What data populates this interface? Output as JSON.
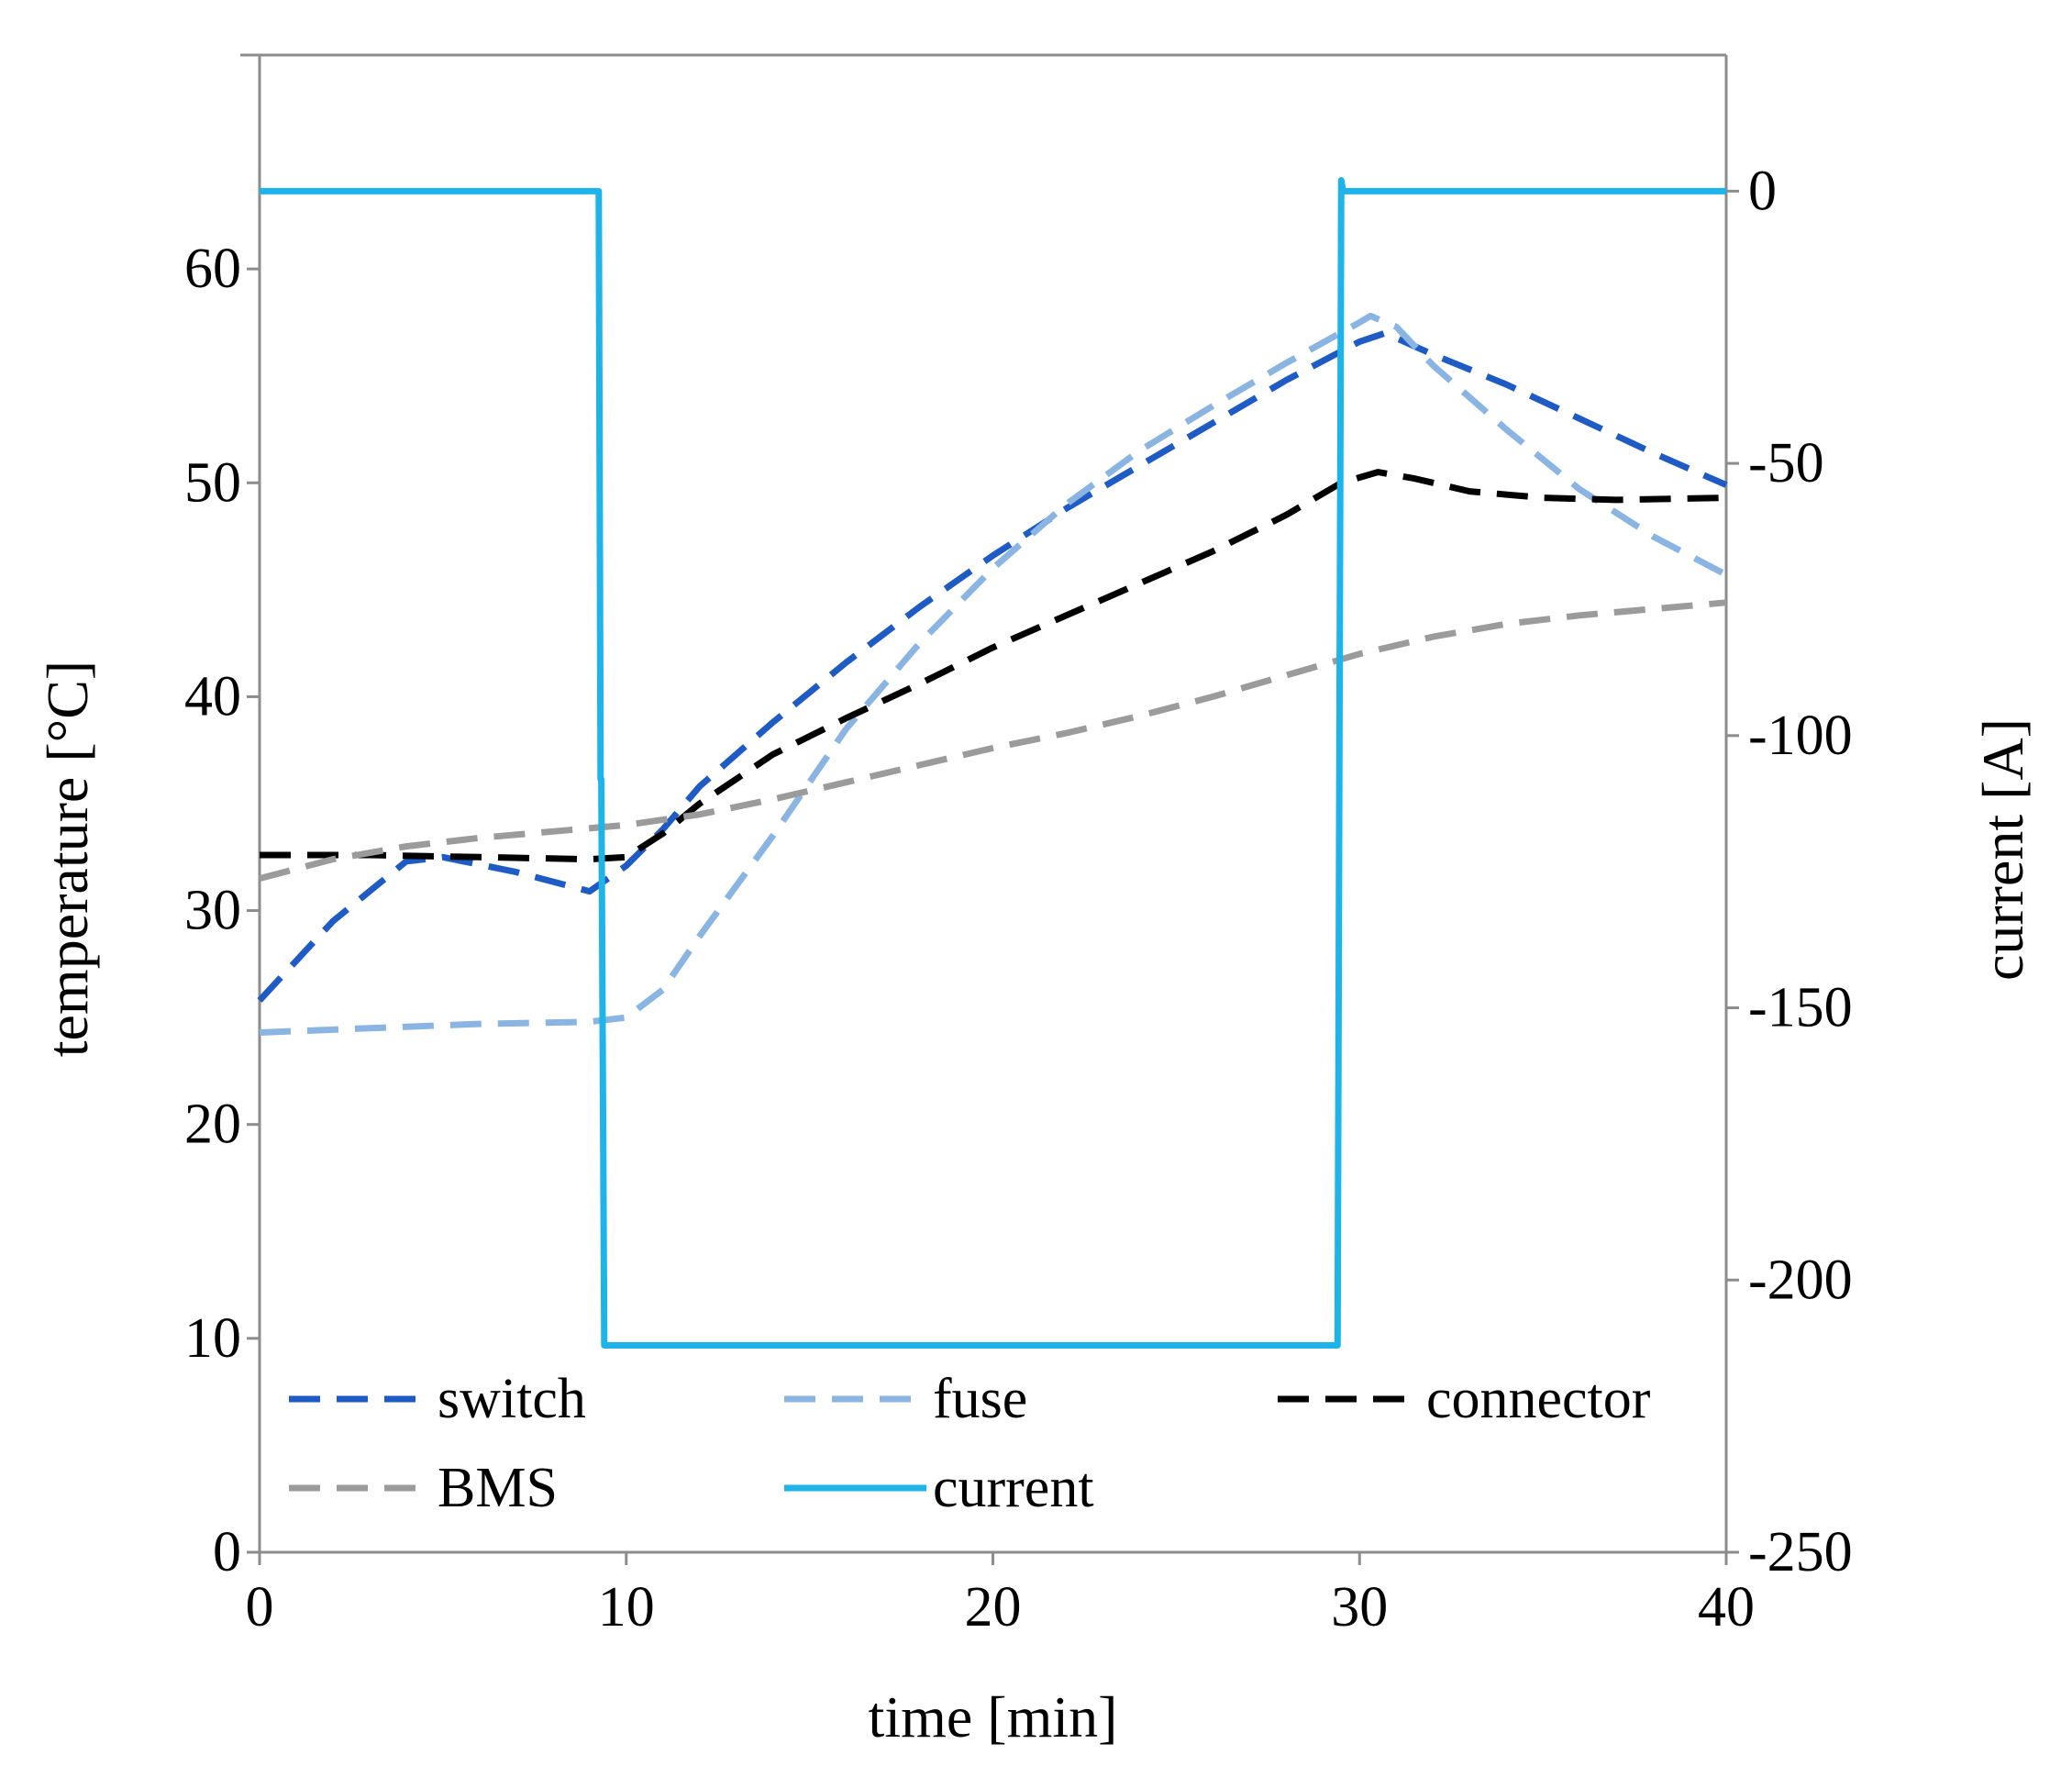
{
  "chart_data": {
    "type": "line",
    "xlabel": "time [min]",
    "ylabel": "temperature [°C]",
    "y2label": "current [A]",
    "xlim": [
      0,
      40
    ],
    "ylim": [
      0,
      70
    ],
    "y2lim": [
      -250,
      25
    ],
    "xticks": [
      0,
      10,
      20,
      30,
      40
    ],
    "yticks": [
      0,
      10,
      20,
      30,
      40,
      50,
      60
    ],
    "y2ticks": [
      0,
      -50,
      -100,
      -150,
      -200,
      -250
    ],
    "grid": false,
    "legend_position": "bottom-inside",
    "series": [
      {
        "name": "switch",
        "axis": "left",
        "style": "dashed",
        "color": "#1f5bc4",
        "points": [
          [
            0,
            25.8
          ],
          [
            2,
            29.5
          ],
          [
            4,
            32.3
          ],
          [
            5,
            32.5
          ],
          [
            7,
            31.8
          ],
          [
            9,
            30.9
          ],
          [
            10,
            32.1
          ],
          [
            11,
            33.8
          ],
          [
            12,
            35.8
          ],
          [
            14,
            38.8
          ],
          [
            16,
            41.6
          ],
          [
            18,
            44.2
          ],
          [
            20,
            46.6
          ],
          [
            22,
            48.8
          ],
          [
            24,
            50.8
          ],
          [
            26,
            52.8
          ],
          [
            28,
            54.8
          ],
          [
            30,
            56.6
          ],
          [
            30.7,
            57.0
          ],
          [
            32,
            56.0
          ],
          [
            34,
            54.6
          ],
          [
            36,
            53.0
          ],
          [
            38,
            51.4
          ],
          [
            40,
            49.9
          ]
        ]
      },
      {
        "name": "fuse",
        "axis": "left",
        "style": "dashed",
        "color": "#8ab4e2",
        "points": [
          [
            0,
            24.3
          ],
          [
            3,
            24.5
          ],
          [
            6,
            24.7
          ],
          [
            9,
            24.8
          ],
          [
            10,
            25.0
          ],
          [
            11,
            26.3
          ],
          [
            12,
            28.8
          ],
          [
            14,
            33.5
          ],
          [
            16,
            38.5
          ],
          [
            18,
            42.5
          ],
          [
            20,
            46.0
          ],
          [
            22,
            49.0
          ],
          [
            24,
            51.5
          ],
          [
            26,
            53.6
          ],
          [
            28,
            55.6
          ],
          [
            30,
            57.5
          ],
          [
            30.3,
            57.8
          ],
          [
            31,
            57.3
          ],
          [
            32,
            55.5
          ],
          [
            34,
            52.5
          ],
          [
            36,
            49.7
          ],
          [
            38,
            47.5
          ],
          [
            40,
            45.7
          ]
        ]
      },
      {
        "name": "connector",
        "axis": "left",
        "style": "dashed",
        "color": "#000000",
        "points": [
          [
            0,
            32.6
          ],
          [
            3,
            32.6
          ],
          [
            6,
            32.5
          ],
          [
            9,
            32.4
          ],
          [
            10,
            32.5
          ],
          [
            11,
            33.6
          ],
          [
            12,
            35.0
          ],
          [
            14,
            37.3
          ],
          [
            16,
            39.0
          ],
          [
            18,
            40.6
          ],
          [
            20,
            42.3
          ],
          [
            22,
            43.8
          ],
          [
            24,
            45.3
          ],
          [
            26,
            46.8
          ],
          [
            28,
            48.5
          ],
          [
            29.5,
            50.0
          ],
          [
            30.5,
            50.5
          ],
          [
            31.5,
            50.2
          ],
          [
            33,
            49.6
          ],
          [
            35,
            49.3
          ],
          [
            37,
            49.2
          ],
          [
            40,
            49.3
          ]
        ]
      },
      {
        "name": "BMS",
        "axis": "left",
        "style": "dashed",
        "color": "#9b9b9b",
        "points": [
          [
            0,
            31.5
          ],
          [
            2,
            32.4
          ],
          [
            4,
            33.0
          ],
          [
            6,
            33.4
          ],
          [
            8,
            33.7
          ],
          [
            10,
            34.0
          ],
          [
            12,
            34.5
          ],
          [
            14,
            35.2
          ],
          [
            16,
            36.0
          ],
          [
            18,
            36.8
          ],
          [
            20,
            37.6
          ],
          [
            22,
            38.3
          ],
          [
            24,
            39.1
          ],
          [
            26,
            40.0
          ],
          [
            28,
            41.0
          ],
          [
            30,
            42.0
          ],
          [
            32,
            42.8
          ],
          [
            34,
            43.4
          ],
          [
            36,
            43.8
          ],
          [
            38,
            44.1
          ],
          [
            40,
            44.4
          ]
        ]
      },
      {
        "name": "current",
        "axis": "right",
        "style": "solid",
        "color": "#1eb4ea",
        "points": [
          [
            0,
            0
          ],
          [
            9.25,
            0
          ],
          [
            9.3,
            -108
          ],
          [
            9.32,
            -108
          ],
          [
            9.4,
            -212
          ],
          [
            29.4,
            -212
          ],
          [
            29.45,
            -102
          ],
          [
            29.5,
            2
          ],
          [
            29.55,
            0
          ],
          [
            40,
            0
          ]
        ]
      }
    ]
  }
}
